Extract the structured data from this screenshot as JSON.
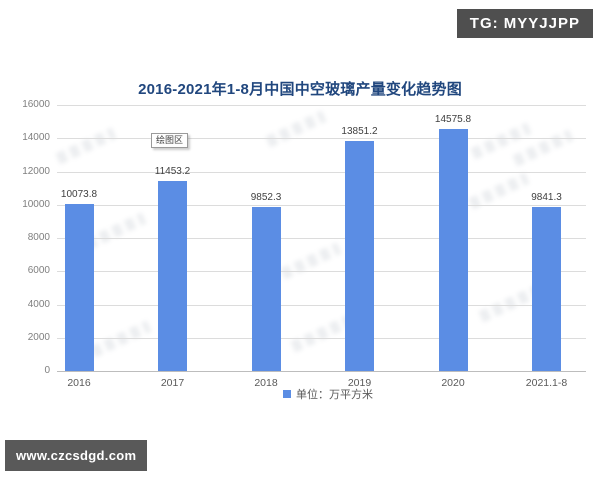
{
  "overlays": {
    "tg_badge": "TG: MYYJJPP",
    "site_badge": "www.czcsdgd.com",
    "plot_area_tooltip": "绘图区"
  },
  "chart_data": {
    "type": "bar",
    "title": "2016-2021年1-8月中国中空玻璃产量变化趋势图",
    "categories": [
      "2016",
      "2017",
      "2018",
      "2019",
      "2020",
      "2021.1-8"
    ],
    "values": [
      10073.8,
      11453.2,
      9852.3,
      13851.2,
      14575.8,
      9841.3
    ],
    "value_labels": [
      "10073.8",
      "11453.2",
      "9852.3",
      "13851.2",
      "14575.8",
      "9841.3"
    ],
    "xlabel": "",
    "ylabel": "",
    "ylim": [
      0,
      16000
    ],
    "yticks": [
      0,
      2000,
      4000,
      6000,
      8000,
      10000,
      12000,
      14000,
      16000
    ],
    "grid": true,
    "legend": "单位：万平方米",
    "legend_position": "bottom",
    "bar_color": "#5b8de4"
  },
  "colors": {
    "title": "#21477e",
    "bar": "#5b8de4",
    "gridline": "#dcdcdc",
    "y_tick_label": "#7f7f7f",
    "x_tick_label": "#595959",
    "value_label": "#3f3f3f",
    "badge_background": "#4f4f4f",
    "badge_text": "#ffffff"
  }
}
